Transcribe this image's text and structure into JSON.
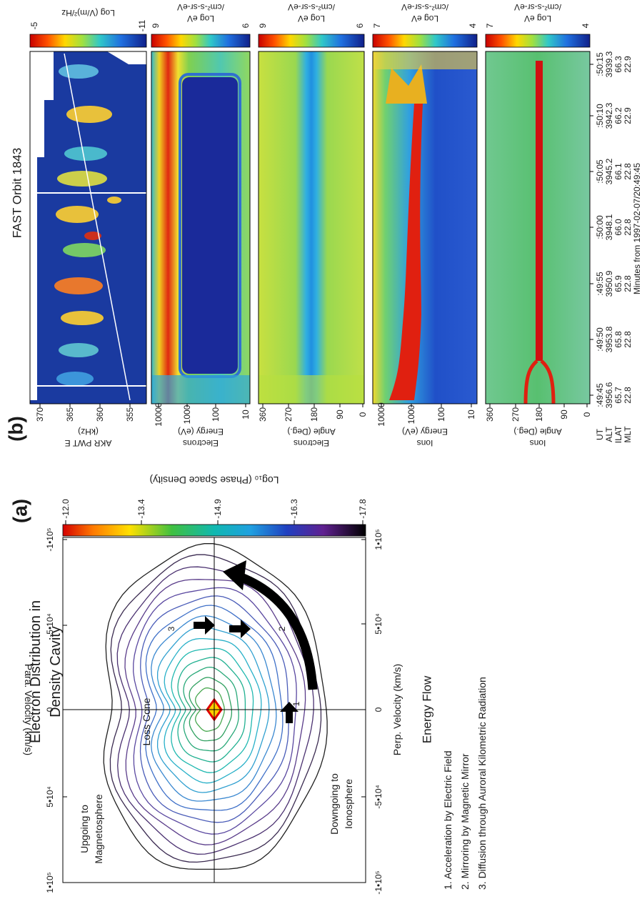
{
  "panel_a": {
    "label": "(a)",
    "title": [
      "Electron Distribution in",
      "Density Cavity"
    ],
    "colorbar": {
      "label": "Log₁₀ (Phase Space Density)",
      "ticks": [
        "-12.0",
        "-13.4",
        "-14.9",
        "-16.3",
        "-17.8"
      ]
    },
    "y_axis": {
      "label": "Para. Velocity (km/s)",
      "ticks": [
        "-1•10⁵",
        "-5•10⁴",
        "0",
        "5•10⁴",
        "1•10⁵"
      ]
    },
    "x_axis": {
      "label": "Perp. Velocity (km/s)",
      "ticks": [
        "-1•10⁵",
        "-5•10⁴",
        "0",
        "5•10⁴",
        "1•10⁵"
      ]
    },
    "annotations": [
      "Upgoing to",
      "Magnetosphere",
      "Loss Cone",
      "Downgoing to",
      "Ionosphere",
      "1",
      "2",
      "3"
    ],
    "energy_flow": {
      "title": "Energy Flow",
      "items": [
        "1. Acceleration by Electric Field",
        "2. Mirroring by Magnetic Mirror",
        "3. Diffusion through Auroral Kilometric Radiation"
      ]
    }
  },
  "panel_b": {
    "label": "(b)",
    "title": "FAST Orbit 1843",
    "strips": [
      {
        "label": [
          "AKR PWT E",
          "(kHz)"
        ],
        "ticks": [
          "370",
          "365",
          "360",
          "355"
        ],
        "colorbar": {
          "label": [
            "Log (V/m)²/Hz"
          ],
          "ticks": [
            "-5",
            "-11"
          ]
        }
      },
      {
        "label": [
          "Electrons",
          "Energy (eV)"
        ],
        "ticks": [
          "10000",
          "1000",
          "100",
          "10"
        ],
        "colorbar": {
          "label": [
            "Log eV",
            "/cm²-s-sr-eV"
          ],
          "ticks": [
            "9",
            "6"
          ]
        }
      },
      {
        "label": [
          "Electrons",
          "Angle (Deg.)"
        ],
        "ticks": [
          "360",
          "270",
          "180",
          "90",
          "0"
        ],
        "colorbar": {
          "label": [
            "Log eV",
            "/cm²-s-sr-eV"
          ],
          "ticks": [
            "9",
            "6"
          ]
        }
      },
      {
        "label": [
          "Ions",
          "Energy (eV)"
        ],
        "ticks": [
          "10000",
          "1000",
          "100",
          "10"
        ],
        "colorbar": {
          "label": [
            "Log eV",
            "/cm²-s-sr-eV"
          ],
          "ticks": [
            "7",
            "4"
          ]
        }
      },
      {
        "label": [
          "Ions",
          "Angle (Deg.)"
        ],
        "ticks": [
          "360",
          "270",
          "180",
          "90",
          "0"
        ],
        "colorbar": {
          "label": [
            "Log eV",
            "/cm²-s-sr-eV"
          ],
          "ticks": [
            "7",
            "4"
          ]
        }
      }
    ],
    "time_axis": {
      "rows": [
        "UT",
        "ALT",
        "ILAT",
        "MLT"
      ],
      "columns": [
        [
          ":49:45",
          "3956.6",
          "65.7",
          "22.8"
        ],
        [
          ":49:50",
          "3953.8",
          "65.8",
          "22.8"
        ],
        [
          ":49:55",
          "3950.9",
          "65.9",
          "22.8"
        ],
        [
          ":50:00",
          "3948.1",
          "66.0",
          "22.8"
        ],
        [
          ":50:05",
          "3945.2",
          "66.1",
          "22.8"
        ],
        [
          ":50:10",
          "3942.3",
          "66.2",
          "22.9"
        ],
        [
          ":50:15",
          "3939.3",
          "66.3",
          "22.9"
        ]
      ],
      "footer": "Minutes from 1997-02-07/20:49:45"
    }
  }
}
